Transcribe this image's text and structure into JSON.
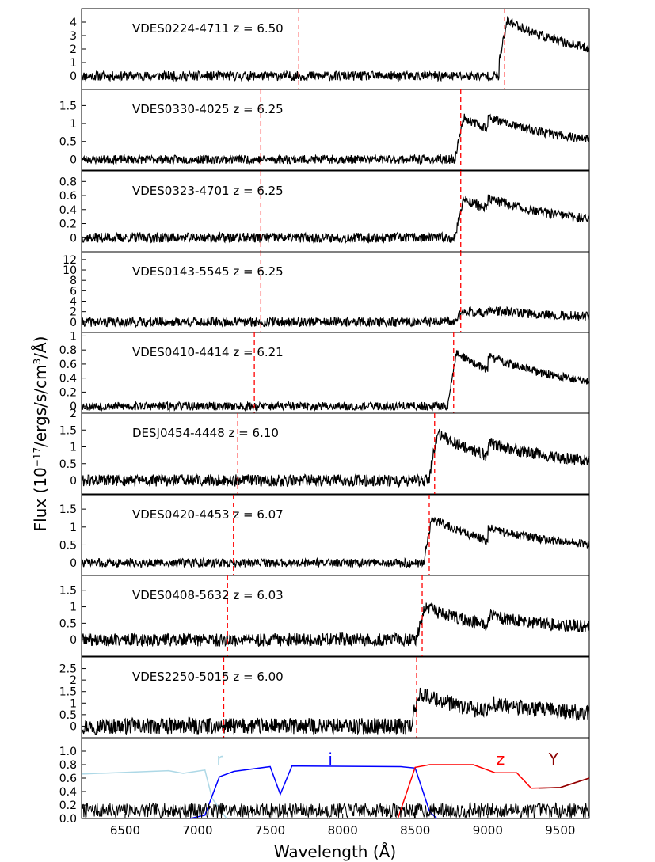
{
  "figure": {
    "ylabel": "Flux (10^{-17}/ergs/s/cm^3/Å)",
    "ylabel_parts": {
      "prefix": "Flux (10",
      "sup1": "−17",
      "middle": "/ergs/s/cm",
      "sup2": "3",
      "unit": "/Å)"
    },
    "xlabel": "Wavelength (Å)"
  },
  "chart_data": {
    "type": "line",
    "x_range": [
      6200,
      9700
    ],
    "x_ticks": [
      6500,
      7000,
      7500,
      8000,
      8500,
      9000,
      9500
    ],
    "panels": [
      {
        "name": "VDES0224-4711",
        "label": "VDES0224-4711 z = 6.50",
        "z": 6.5,
        "lya": 7116,
        "line2": 7698,
        "line2_wl": 9117,
        "ylim": [
          -1.0,
          5.0
        ],
        "yticks": [
          0,
          1,
          2,
          3,
          4
        ],
        "noise": 0.35,
        "peak": 3.6,
        "seed": 11
      },
      {
        "name": "VDES0330-4025",
        "label": "VDES0330-4025 z = 6.25",
        "z": 6.25,
        "line_a": 7436,
        "line_b": 8814,
        "ylim": [
          -0.3,
          1.95
        ],
        "yticks": [
          0.0,
          0.5,
          1.0,
          1.5
        ],
        "noise": 0.12,
        "peak": 1.3,
        "seed": 23
      },
      {
        "name": "VDES0323-4701",
        "label": "VDES0323-4701 z = 6.25",
        "z": 6.25,
        "line_a": 7436,
        "line_b": 8814,
        "ylim": [
          -0.2,
          0.95
        ],
        "yticks": [
          0.0,
          0.2,
          0.4,
          0.6,
          0.8
        ],
        "noise": 0.07,
        "peak": 0.62,
        "seed": 37
      },
      {
        "name": "VDES0143-5545",
        "label": "VDES0143-5545 z = 6.25",
        "z": 6.25,
        "line_a": 7436,
        "line_b": 8814,
        "ylim": [
          -2.0,
          13.5
        ],
        "yticks": [
          0,
          2,
          4,
          6,
          8,
          10,
          12
        ],
        "noise": 0.9,
        "peak": 2.5,
        "seed": 41
      },
      {
        "name": "VDES0410-4414",
        "label": "VDES0410-4414 z = 6.21",
        "z": 6.21,
        "line_a": 7391,
        "line_b": 8765,
        "ylim": [
          -0.1,
          1.05
        ],
        "yticks": [
          0.0,
          0.2,
          0.4,
          0.6,
          0.8,
          1.0
        ],
        "noise": 0.06,
        "peak": 0.85,
        "seed": 53
      },
      {
        "name": "DESJ0454-4448",
        "label": "DESJ0454-4448 z = 6.10",
        "z": 6.1,
        "line_a": 7277,
        "line_b": 8634,
        "ylim": [
          -0.4,
          2.0
        ],
        "yticks": [
          0.0,
          0.5,
          1.0,
          1.5,
          2.0
        ],
        "noise": 0.18,
        "peak": 1.55,
        "seed": 61
      },
      {
        "name": "VDES0420-4453",
        "label": "VDES0420-4453 z = 6.07",
        "z": 6.07,
        "line_a": 7247,
        "line_b": 8597,
        "ylim": [
          -0.35,
          1.9
        ],
        "yticks": [
          0.0,
          0.5,
          1.0,
          1.5
        ],
        "noise": 0.12,
        "peak": 1.4,
        "seed": 73
      },
      {
        "name": "VDES0408-5632",
        "label": "VDES0408-5632 z = 6.03",
        "z": 6.03,
        "line_a": 7206,
        "line_b": 8548,
        "ylim": [
          -0.5,
          1.95
        ],
        "yticks": [
          0.0,
          0.5,
          1.0,
          1.5
        ],
        "noise": 0.2,
        "peak": 1.1,
        "seed": 89
      },
      {
        "name": "VDES2250-5015",
        "label": "VDES2250-5015 z = 6.00",
        "z": 6.0,
        "line_a": 7180,
        "line_b": 8510,
        "ylim": [
          -0.5,
          3.0
        ],
        "yticks": [
          0.0,
          0.5,
          1.0,
          1.5,
          2.0,
          2.5
        ],
        "noise": 0.35,
        "peak": 1.6,
        "seed": 97
      }
    ],
    "filters": {
      "ylim": [
        0.0,
        1.2
      ],
      "yticks": [
        0.0,
        0.2,
        0.4,
        0.6,
        0.8,
        1.0
      ],
      "bands": [
        {
          "name": "r",
          "label": "r",
          "color": "#add8e6"
        },
        {
          "name": "i",
          "label": "i",
          "color": "#0000ff"
        },
        {
          "name": "z",
          "label": "z",
          "color": "#ff0000"
        },
        {
          "name": "Y",
          "label": "Y",
          "color": "#8b0000"
        }
      ],
      "spectrum_color": "#000000"
    },
    "line_color": "#ff0000"
  }
}
